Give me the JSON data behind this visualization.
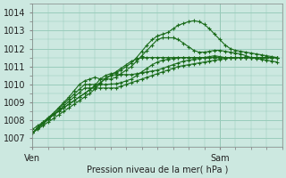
{
  "title": "",
  "xlabel": "Pression niveau de la mer( hPa )",
  "ylabel": "",
  "bg_color": "#cce8e0",
  "grid_color": "#99ccbb",
  "line_color": "#1a6b1a",
  "marker_color": "#1a6b1a",
  "ylim": [
    1006.5,
    1014.5
  ],
  "xlim": [
    0,
    48
  ],
  "yticks": [
    1007,
    1008,
    1009,
    1010,
    1011,
    1012,
    1013,
    1014
  ],
  "xtick_positions": [
    0,
    36
  ],
  "xtick_labels": [
    "Ven",
    "Sam"
  ],
  "vline_x": 36,
  "series": [
    [
      1007.3,
      1007.55,
      1007.8,
      1008.05,
      1008.3,
      1008.55,
      1008.8,
      1009.05,
      1009.3,
      1009.55,
      1009.8,
      1009.8,
      1009.8,
      1009.8,
      1009.8,
      1009.8,
      1009.8,
      1009.9,
      1010.0,
      1010.1,
      1010.2,
      1010.3,
      1010.4,
      1010.5,
      1010.6,
      1010.7,
      1010.8,
      1010.9,
      1011.0,
      1011.05,
      1011.1,
      1011.15,
      1011.2,
      1011.25,
      1011.3,
      1011.35,
      1011.4,
      1011.45,
      1011.5,
      1011.5,
      1011.5,
      1011.5,
      1011.5,
      1011.5,
      1011.5,
      1011.5,
      1011.5,
      1011.5
    ],
    [
      1007.3,
      1007.57,
      1007.84,
      1008.11,
      1008.38,
      1008.65,
      1008.92,
      1009.19,
      1009.46,
      1009.73,
      1010.0,
      1010.0,
      1010.0,
      1010.0,
      1010.0,
      1010.02,
      1010.04,
      1010.1,
      1010.2,
      1010.3,
      1010.5,
      1010.7,
      1010.9,
      1011.1,
      1011.25,
      1011.35,
      1011.4,
      1011.45,
      1011.5,
      1011.5,
      1011.5,
      1011.5,
      1011.5,
      1011.5,
      1011.5,
      1011.5,
      1011.5,
      1011.5,
      1011.5,
      1011.5,
      1011.5,
      1011.5,
      1011.5,
      1011.5,
      1011.5,
      1011.5,
      1011.5,
      1011.5
    ],
    [
      1007.5,
      1007.7,
      1007.9,
      1008.1,
      1008.3,
      1008.5,
      1008.7,
      1008.9,
      1009.1,
      1009.3,
      1009.5,
      1009.7,
      1009.9,
      1010.1,
      1010.3,
      1010.5,
      1010.7,
      1010.9,
      1011.1,
      1011.3,
      1011.4,
      1011.5,
      1011.5,
      1011.5,
      1011.5,
      1011.5,
      1011.5,
      1011.5,
      1011.5,
      1011.5,
      1011.5,
      1011.5,
      1011.5,
      1011.5,
      1011.5,
      1011.5,
      1011.5,
      1011.5,
      1011.5,
      1011.5,
      1011.5,
      1011.5,
      1011.5,
      1011.5,
      1011.5,
      1011.5,
      1011.5,
      1011.5
    ],
    [
      1007.3,
      1007.5,
      1007.7,
      1007.9,
      1008.1,
      1008.3,
      1008.5,
      1008.7,
      1008.9,
      1009.1,
      1009.3,
      1009.5,
      1009.75,
      1010.05,
      1010.35,
      1010.5,
      1010.55,
      1010.55,
      1010.55,
      1010.55,
      1010.6,
      1010.65,
      1010.7,
      1010.75,
      1010.8,
      1010.9,
      1011.0,
      1011.1,
      1011.2,
      1011.3,
      1011.35,
      1011.4,
      1011.45,
      1011.5,
      1011.55,
      1011.6,
      1011.55,
      1011.5,
      1011.5,
      1011.5,
      1011.5,
      1011.5,
      1011.5,
      1011.5,
      1011.5,
      1011.5,
      1011.5,
      1011.5
    ],
    [
      1007.3,
      1007.6,
      1007.9,
      1008.15,
      1008.4,
      1008.7,
      1009.0,
      1009.3,
      1009.65,
      1010.0,
      1010.2,
      1010.3,
      1010.4,
      1010.3,
      1010.3,
      1010.3,
      1010.4,
      1010.6,
      1010.8,
      1011.0,
      1011.3,
      1011.6,
      1011.9,
      1012.2,
      1012.5,
      1012.6,
      1012.6,
      1012.6,
      1012.5,
      1012.3,
      1012.1,
      1011.9,
      1011.8,
      1011.8,
      1011.85,
      1011.9,
      1011.9,
      1011.85,
      1011.8,
      1011.75,
      1011.7,
      1011.6,
      1011.5,
      1011.45,
      1011.4,
      1011.35,
      1011.3,
      1011.25
    ],
    [
      1007.3,
      1007.55,
      1007.8,
      1008.05,
      1008.3,
      1008.5,
      1008.7,
      1008.9,
      1009.1,
      1009.3,
      1009.5,
      1009.7,
      1009.95,
      1010.3,
      1010.5,
      1010.6,
      1010.65,
      1010.8,
      1011.0,
      1011.2,
      1011.5,
      1011.85,
      1012.2,
      1012.5,
      1012.7,
      1012.8,
      1012.9,
      1013.1,
      1013.3,
      1013.4,
      1013.5,
      1013.55,
      1013.5,
      1013.35,
      1013.1,
      1012.8,
      1012.5,
      1012.2,
      1012.0,
      1011.9,
      1011.85,
      1011.8,
      1011.75,
      1011.7,
      1011.65,
      1011.6,
      1011.55,
      1011.5
    ]
  ]
}
